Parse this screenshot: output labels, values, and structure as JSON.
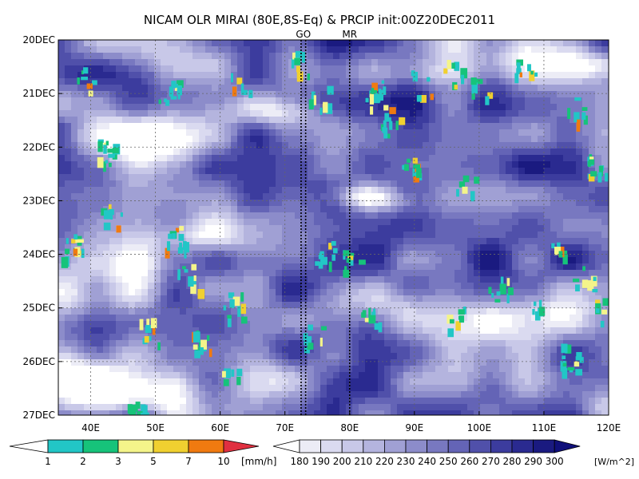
{
  "chart_data": {
    "type": "heatmap",
    "title": "NICAM OLR MIRAI (80E,8S-Eq) & PRCIP init:00Z20DEC2011",
    "xlabel": "",
    "ylabel": "",
    "x_axis": {
      "range": [
        35,
        120
      ],
      "ticks": [
        40,
        50,
        60,
        70,
        80,
        90,
        100,
        110,
        120
      ],
      "tick_labels": [
        "40E",
        "50E",
        "60E",
        "70E",
        "80E",
        "90E",
        "100E",
        "110E",
        "120E"
      ]
    },
    "y_axis": {
      "range": [
        "20DEC",
        "27DEC"
      ],
      "direction": "top-to-bottom",
      "ticks": [
        0,
        1,
        2,
        3,
        4,
        5,
        6,
        7
      ],
      "tick_labels": [
        "20DEC",
        "21DEC",
        "22DEC",
        "23DEC",
        "24DEC",
        "25DEC",
        "26DEC",
        "27DEC"
      ]
    },
    "grid": true,
    "markers": [
      {
        "label": "GO",
        "x": [
          72.5,
          73.2
        ],
        "color": "#e03030"
      },
      {
        "label": "MR",
        "x": [
          80
        ],
        "color": "#e03030"
      }
    ],
    "precip_colorbar": {
      "levels": [
        "1",
        "2",
        "3",
        "5",
        "7",
        "10"
      ],
      "unit": "[mm/h]",
      "colors": [
        "#ffffff",
        "#22c6c6",
        "#16c37a",
        "#f4f48a",
        "#f0d030",
        "#f07a10",
        "#e03040"
      ]
    },
    "olr_colorbar": {
      "levels": [
        "180",
        "190",
        "200",
        "210",
        "220",
        "230",
        "240",
        "250",
        "260",
        "270",
        "280",
        "290",
        "300"
      ],
      "unit": "[W/m2]",
      "unit_display": "[W/m^2]",
      "colors": [
        "#ffffff",
        "#ececf6",
        "#dadaf0",
        "#c8c8e8",
        "#b4b4de",
        "#a0a0d4",
        "#8c8cca",
        "#7878c0",
        "#6464b6",
        "#5050aa",
        "#3c3c9e",
        "#2a2a90",
        "#1a1a80",
        "#10107a"
      ]
    },
    "olr_field_seed": 20111220
  }
}
